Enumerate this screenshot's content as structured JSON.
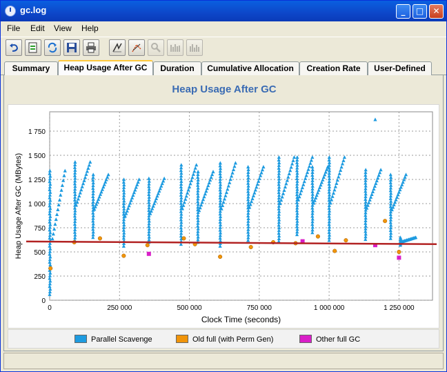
{
  "window": {
    "title": "gc.log"
  },
  "menu": [
    "File",
    "Edit",
    "View",
    "Help"
  ],
  "toolbar": [
    "undo-icon",
    "export-icon",
    "refresh-icon",
    "save-icon",
    "print-icon",
    "zoom-fit-icon",
    "zoom-select-icon",
    "zoom-out-icon",
    "bars-icon",
    "bars-alt-icon"
  ],
  "tabs": [
    "Summary",
    "Heap Usage After GC",
    "Duration",
    "Cumulative Allocation",
    "Creation Rate",
    "User-Defined"
  ],
  "active_tab": "Heap Usage After GC",
  "chart_data": {
    "type": "scatter",
    "title": "Heap Usage After GC",
    "xlabel": "Clock Time  (seconds)",
    "ylabel": "Heap Usage After GC  (MBytes)",
    "xlim": [
      0,
      1370000
    ],
    "ylim": [
      0,
      1950
    ],
    "xticks": [
      "0",
      "250 000",
      "500 000",
      "750 000",
      "1 000 000",
      "1 250 000"
    ],
    "yticks": [
      "0",
      "250",
      "500",
      "750",
      "1 000",
      "1 250",
      "1 500",
      "1 750"
    ],
    "trend_line": {
      "y_start": 608,
      "y_end": 580,
      "color": "#b22222"
    },
    "colors": {
      "scavenge": "#1e9be0",
      "oldfull": "#f0940a",
      "other": "#d91ec8"
    },
    "series": [
      {
        "name": "Parallel Scavenge",
        "sawtooth_cycles": [
          [
            0,
            10,
            60,
            1340
          ],
          [
            90,
            95,
            620,
            1430
          ],
          [
            155,
            160,
            650,
            1300
          ],
          [
            265,
            270,
            560,
            1250
          ],
          [
            355,
            360,
            600,
            1260
          ],
          [
            470,
            475,
            580,
            1400
          ],
          [
            530,
            535,
            600,
            1330
          ],
          [
            610,
            615,
            560,
            1420
          ],
          [
            710,
            715,
            620,
            1380
          ],
          [
            820,
            825,
            610,
            1480
          ],
          [
            885,
            890,
            680,
            1480
          ],
          [
            940,
            945,
            700,
            1380
          ],
          [
            1000,
            1005,
            620,
            1480
          ],
          [
            1130,
            1135,
            630,
            1350
          ],
          [
            1220,
            1225,
            640,
            1300
          ],
          [
            1255,
            1260,
            570,
            650
          ]
        ],
        "outliers": [
          [
            1165,
            1870
          ]
        ]
      },
      {
        "name": "Old full (with Perm Gen)",
        "values": [
          [
            3,
            330
          ],
          [
            88,
            600
          ],
          [
            180,
            640
          ],
          [
            265,
            460
          ],
          [
            350,
            570
          ],
          [
            480,
            640
          ],
          [
            520,
            580
          ],
          [
            610,
            450
          ],
          [
            720,
            550
          ],
          [
            800,
            600
          ],
          [
            880,
            590
          ],
          [
            960,
            660
          ],
          [
            1020,
            510
          ],
          [
            1060,
            620
          ],
          [
            1200,
            820
          ],
          [
            1250,
            500
          ]
        ]
      },
      {
        "name": "Other full GC",
        "values": [
          [
            355,
            480
          ],
          [
            905,
            610
          ],
          [
            1165,
            570
          ],
          [
            1250,
            440
          ]
        ]
      }
    ]
  }
}
